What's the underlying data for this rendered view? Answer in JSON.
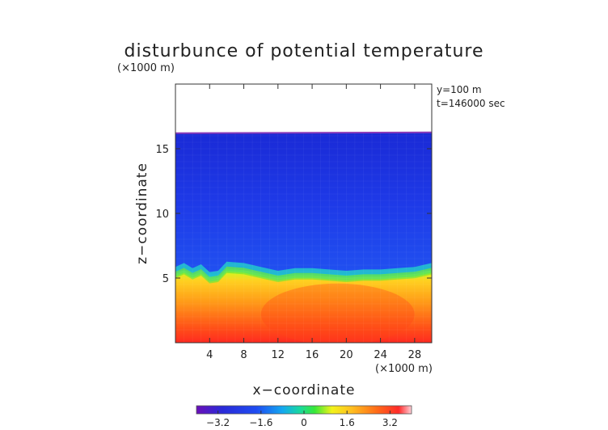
{
  "chart_data": {
    "type": "heatmap",
    "title": "disturbunce of potential temperature",
    "y_unit_label": "(×1000 m)",
    "x_unit_label": "(×1000 m)",
    "xlabel": "x−coordinate",
    "ylabel": "z−coordinate",
    "annotations": [
      "y=100 m",
      "t=146000 sec"
    ],
    "xlim": [
      0,
      30
    ],
    "ylim": [
      0,
      20
    ],
    "x_ticks": [
      {
        "value": 4,
        "label": "4"
      },
      {
        "value": 8,
        "label": "8"
      },
      {
        "value": 12,
        "label": "12"
      },
      {
        "value": 16,
        "label": "16"
      },
      {
        "value": 20,
        "label": "20"
      },
      {
        "value": 24,
        "label": "24"
      },
      {
        "value": 28,
        "label": "28"
      }
    ],
    "y_ticks": [
      {
        "value": 5,
        "label": "5"
      },
      {
        "value": 10,
        "label": "10"
      },
      {
        "value": 15,
        "label": "15"
      }
    ],
    "colorbar": {
      "range": [
        -4,
        4
      ],
      "ticks": [
        {
          "value": -3.2,
          "label": "−3.2"
        },
        {
          "value": -1.6,
          "label": "−1.6"
        },
        {
          "value": 0,
          "label": "0"
        },
        {
          "value": 1.6,
          "label": "1.6"
        },
        {
          "value": 3.2,
          "label": "3.2"
        }
      ]
    },
    "field": {
      "domain_top_km": 16.2,
      "layer_interface_km": [
        [
          0,
          5.3
        ],
        [
          1,
          5.6
        ],
        [
          2,
          5.2
        ],
        [
          3,
          5.5
        ],
        [
          4,
          4.9
        ],
        [
          5,
          5.0
        ],
        [
          6,
          5.7
        ],
        [
          8,
          5.6
        ],
        [
          10,
          5.3
        ],
        [
          12,
          5.0
        ],
        [
          14,
          5.2
        ],
        [
          16,
          5.2
        ],
        [
          18,
          5.1
        ],
        [
          20,
          5.0
        ],
        [
          22,
          5.1
        ],
        [
          24,
          5.1
        ],
        [
          26,
          5.2
        ],
        [
          28,
          5.3
        ],
        [
          30,
          5.6
        ]
      ],
      "upper_layer_value": -2.4,
      "surface_value": 3.0,
      "interface_value": 0.8
    }
  }
}
